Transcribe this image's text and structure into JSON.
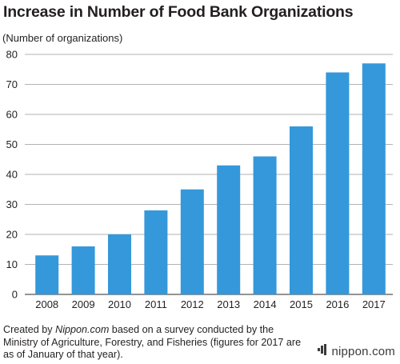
{
  "chart_data": {
    "type": "bar",
    "title": "Increase in Number of Food Bank Organizations",
    "ylabel": "(Number of organizations)",
    "xlabel": "",
    "categories": [
      "2008",
      "2009",
      "2010",
      "2011",
      "2012",
      "2013",
      "2014",
      "2015",
      "2016",
      "2017"
    ],
    "values": [
      13,
      16,
      20,
      28,
      35,
      43,
      46,
      56,
      74,
      77
    ],
    "ylim": [
      0,
      80
    ],
    "yticks": [
      0,
      10,
      20,
      30,
      40,
      50,
      60,
      70,
      80
    ],
    "grid": true,
    "legend": "none",
    "bar_color": "#3498db"
  },
  "source": {
    "prefix": "Created by ",
    "site": "Nippon.com",
    "suffix": " based on a survey conducted by the Ministry of Agriculture, Forestry, and Fisheries (figures for 2017 are as of January of that year)."
  },
  "logo": {
    "text": "nippon.com",
    "name_part": "nippon",
    "dot_part": ".",
    "tld_part": "com"
  }
}
